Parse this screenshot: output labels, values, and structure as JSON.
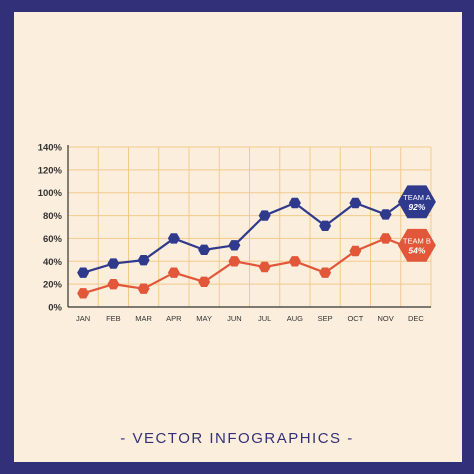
{
  "footer": {
    "title": "- VECTOR INFOGRAPHICS -"
  },
  "colors": {
    "frame": "#33307a",
    "background": "#fbeedd",
    "grid": "#f3c98a",
    "team_a": "#2f3a8c",
    "team_b": "#e2573a",
    "text": "#333333"
  },
  "chart_data": {
    "type": "line",
    "categories": [
      "JAN",
      "FEB",
      "MAR",
      "APR",
      "MAY",
      "JUN",
      "JUL",
      "AUG",
      "SEP",
      "OCT",
      "NOV",
      "DEC"
    ],
    "y_ticks": [
      "0%",
      "20%",
      "40%",
      "60%",
      "80%",
      "100%",
      "120%",
      "140%"
    ],
    "ylim": [
      0,
      140
    ],
    "grid": true,
    "series": [
      {
        "name": "TEAM A",
        "values": [
          30,
          38,
          41,
          60,
          50,
          54,
          80,
          91,
          71,
          91,
          81,
          92
        ],
        "end_label": "92%",
        "color": "#2f3a8c"
      },
      {
        "name": "TEAM B",
        "values": [
          12,
          20,
          16,
          30,
          22,
          40,
          35,
          40,
          30,
          49,
          60,
          54
        ],
        "end_label": "54%",
        "color": "#e2573a"
      }
    ]
  }
}
